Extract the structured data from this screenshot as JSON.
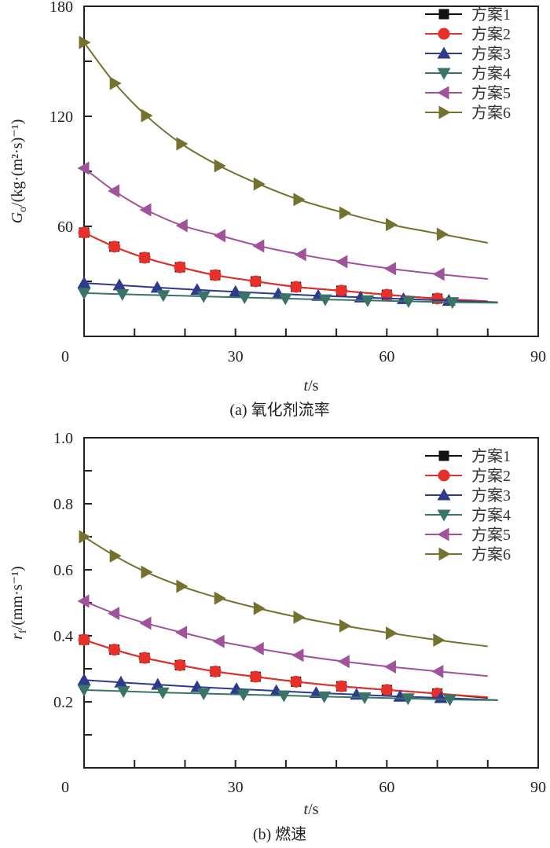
{
  "chart_data": [
    {
      "type": "line",
      "caption": "(a) 氧化剂流率",
      "ylabel_main": "G",
      "ylabel_sub": "o",
      "ylabel_rest": "/(kg·(m²·s)⁻¹)",
      "xlabel_italic": "t",
      "xlabel_rest": "/s",
      "xlim": [
        0,
        90
      ],
      "ylim": [
        0,
        180
      ],
      "xticks": [
        0,
        30,
        60,
        90
      ],
      "xminor": [
        10,
        20,
        40,
        50,
        70,
        80
      ],
      "yticks": [
        60,
        120,
        180
      ],
      "yminor": [
        30,
        90,
        150
      ],
      "xtick_labels": [
        "0",
        "30",
        "60",
        "90"
      ],
      "ytick_labels": [
        "60",
        "120",
        "180"
      ],
      "legend": "top-right",
      "series": [
        {
          "name": "方案1",
          "color": "#111111",
          "marker": "square",
          "x": [
            0,
            6,
            12,
            19,
            26,
            34,
            42,
            51,
            60,
            70,
            80
          ],
          "y": [
            56.6,
            48.9,
            42.9,
            37.7,
            33.4,
            30.0,
            27.0,
            24.9,
            22.7,
            20.6,
            18.9
          ],
          "marker_count": 10
        },
        {
          "name": "方案2",
          "color": "#e8302a",
          "marker": "circle",
          "x": [
            0,
            6,
            12,
            19,
            26,
            34,
            42,
            51,
            60,
            70,
            80
          ],
          "y": [
            56.6,
            48.9,
            42.9,
            37.7,
            33.4,
            30.0,
            27.0,
            24.9,
            22.7,
            20.6,
            19.2
          ],
          "marker_count": 10
        },
        {
          "name": "方案3",
          "color": "#2e3a8c",
          "marker": "triangle-up",
          "x": [
            0,
            7,
            14.5,
            22.4,
            30,
            38.5,
            46.4,
            54.8,
            63.3,
            72.3,
            82
          ],
          "y": [
            29.1,
            27.9,
            26.6,
            25.4,
            24.3,
            23.2,
            22.2,
            21.3,
            20.4,
            19.5,
            18.6
          ],
          "marker_count": 10
        },
        {
          "name": "方案4",
          "color": "#3a7468",
          "marker": "triangle-down",
          "x": [
            0,
            7.6,
            15.7,
            23.7,
            31.8,
            39.9,
            47.8,
            56.2,
            64.3,
            73,
            82
          ],
          "y": [
            23.6,
            23.0,
            22.4,
            21.8,
            21.2,
            20.6,
            20.1,
            19.6,
            19.1,
            18.6,
            18.3
          ],
          "marker_count": 10
        },
        {
          "name": "方案5",
          "color": "#a0529a",
          "marker": "triangle-left",
          "x": [
            0,
            6,
            12.3,
            19.5,
            27,
            34.7,
            43,
            51.2,
            60.8,
            70.4,
            80
          ],
          "y": [
            91.7,
            79.3,
            69.0,
            60.4,
            54.9,
            49.3,
            44.6,
            40.7,
            36.9,
            33.9,
            31.3
          ],
          "marker_count": 10
        },
        {
          "name": "方案6",
          "color": "#75712e",
          "marker": "triangle-right",
          "x": [
            0,
            6.1,
            12.3,
            19.3,
            26.8,
            34.6,
            42.5,
            51.6,
            60.8,
            70.9,
            80
          ],
          "y": [
            160.3,
            138.0,
            120.4,
            105.0,
            93.0,
            83.1,
            74.6,
            67.3,
            60.9,
            55.7,
            51.0
          ],
          "marker_count": 10
        }
      ]
    },
    {
      "type": "line",
      "caption": "(b) 燃速",
      "ylabel_main": "r",
      "ylabel_sub": "f",
      "ylabel_rest": "/(mm·s⁻¹)",
      "xlabel_italic": "t",
      "xlabel_rest": "/s",
      "xlim": [
        0,
        90
      ],
      "ylim": [
        0,
        1.0
      ],
      "xticks": [
        0,
        30,
        60,
        90
      ],
      "xminor": [
        10,
        20,
        40,
        50,
        70,
        80
      ],
      "yticks": [
        0.2,
        0.4,
        0.6,
        0.8,
        1.0
      ],
      "yminor": [
        0.1,
        0.3,
        0.5,
        0.7,
        0.9
      ],
      "xtick_labels": [
        "0",
        "30",
        "60",
        "90"
      ],
      "ytick_labels": [
        "0.2",
        "0.4",
        "0.6",
        "0.8",
        "1.0"
      ],
      "legend": "top-right",
      "series": [
        {
          "name": "方案1",
          "color": "#111111",
          "marker": "square",
          "x": [
            0,
            6,
            12,
            19,
            26,
            34,
            42,
            51,
            60,
            70,
            80
          ],
          "y": [
            0.388,
            0.358,
            0.333,
            0.311,
            0.292,
            0.276,
            0.261,
            0.247,
            0.236,
            0.225,
            0.212
          ],
          "marker_count": 10
        },
        {
          "name": "方案2",
          "color": "#e8302a",
          "marker": "circle",
          "x": [
            0,
            6,
            12,
            19,
            26,
            34,
            42,
            51,
            60,
            70,
            80
          ],
          "y": [
            0.388,
            0.358,
            0.333,
            0.311,
            0.292,
            0.276,
            0.261,
            0.247,
            0.236,
            0.225,
            0.214
          ],
          "marker_count": 10
        },
        {
          "name": "方案3",
          "color": "#2e3a8c",
          "marker": "triangle-up",
          "x": [
            0,
            7.3,
            14.6,
            22.4,
            30.2,
            38.1,
            46,
            54,
            62.6,
            70.7,
            82
          ],
          "y": [
            0.266,
            0.259,
            0.252,
            0.245,
            0.239,
            0.233,
            0.227,
            0.222,
            0.216,
            0.212,
            0.205
          ],
          "marker_count": 10
        },
        {
          "name": "方案4",
          "color": "#3a7468",
          "marker": "triangle-down",
          "x": [
            0,
            7.8,
            15.6,
            23.7,
            31.6,
            39.6,
            47.6,
            55.6,
            64.2,
            72.5,
            82
          ],
          "y": [
            0.236,
            0.232,
            0.228,
            0.225,
            0.222,
            0.219,
            0.216,
            0.213,
            0.21,
            0.207,
            0.205
          ],
          "marker_count": 10
        },
        {
          "name": "方案5",
          "color": "#a0529a",
          "marker": "triangle-left",
          "x": [
            0,
            6,
            12.3,
            19.4,
            26.8,
            34.6,
            42.5,
            51.6,
            60.8,
            70.2,
            80
          ],
          "y": [
            0.505,
            0.468,
            0.438,
            0.41,
            0.383,
            0.361,
            0.341,
            0.322,
            0.306,
            0.292,
            0.278
          ],
          "marker_count": 10
        },
        {
          "name": "方案6",
          "color": "#75712e",
          "marker": "triangle-right",
          "x": [
            0,
            6.1,
            12.3,
            19.3,
            26.8,
            34.6,
            42.5,
            51.6,
            60.8,
            70.2,
            80
          ],
          "y": [
            0.7,
            0.642,
            0.593,
            0.55,
            0.514,
            0.483,
            0.456,
            0.43,
            0.408,
            0.387,
            0.368
          ],
          "marker_count": 10
        }
      ]
    }
  ]
}
